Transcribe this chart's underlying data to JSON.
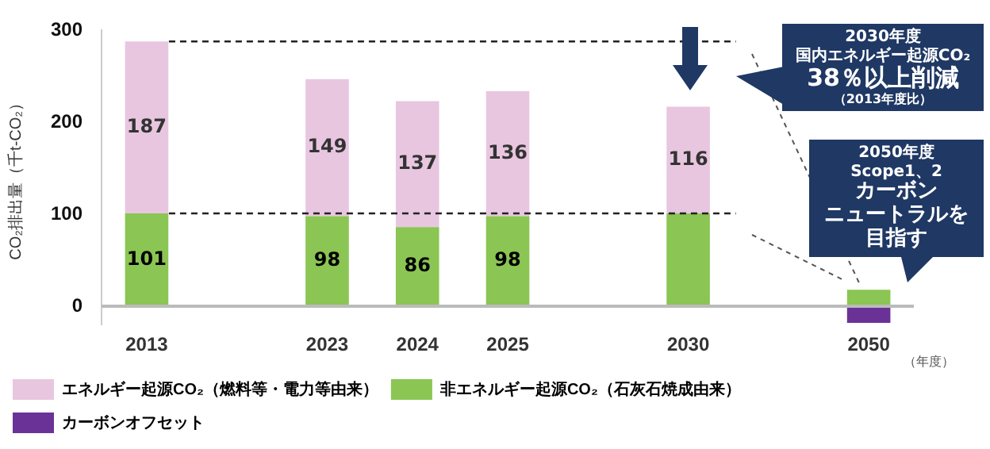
{
  "chart_data": {
    "type": "bar",
    "stacked": true,
    "ylabel": "CO₂排出量（千t-CO₂）",
    "xlabel": "（年度）",
    "categories": [
      "2013",
      null,
      "2023",
      "2024",
      "2025",
      null,
      "2030",
      null,
      "2050"
    ],
    "series": [
      {
        "name": "非エネルギー起源CO₂（石灰石焼成由来）",
        "color": "#8bc553",
        "values": [
          101,
          null,
          98,
          86,
          98,
          null,
          101,
          null,
          18
        ],
        "value_labels": [
          "101",
          null,
          "98",
          "86",
          "98",
          null,
          null,
          null,
          null
        ]
      },
      {
        "name": "エネルギー起源CO₂（燃料等・電力等由来）",
        "color": "#e8c6e0",
        "values": [
          187,
          null,
          149,
          137,
          136,
          null,
          116,
          null,
          null
        ],
        "value_labels": [
          "187",
          null,
          "149",
          "137",
          "136",
          null,
          "116",
          null,
          null
        ]
      },
      {
        "name": "カーボンオフセット",
        "color": "#6a3297",
        "values": [
          null,
          null,
          null,
          null,
          null,
          null,
          null,
          null,
          -18
        ]
      }
    ],
    "ylim": [
      -20,
      300
    ],
    "yticks": [
      0,
      100,
      200,
      300
    ],
    "grid": false,
    "legend": "bottom",
    "ref_lines": [
      {
        "axis": "y",
        "value": 288,
        "line_style": "dashed",
        "color": "#222222"
      },
      {
        "axis": "y",
        "value": 101,
        "line_style": "dashed",
        "color": "#222222"
      }
    ],
    "annotations": [
      "2030年度",
      "国内エネルギー起源CO₂",
      "38％以上削減",
      "（2013年度比）",
      "2050年度",
      "Scope1、2",
      "カーボン",
      "ニュートラルを",
      "目指す"
    ]
  }
}
